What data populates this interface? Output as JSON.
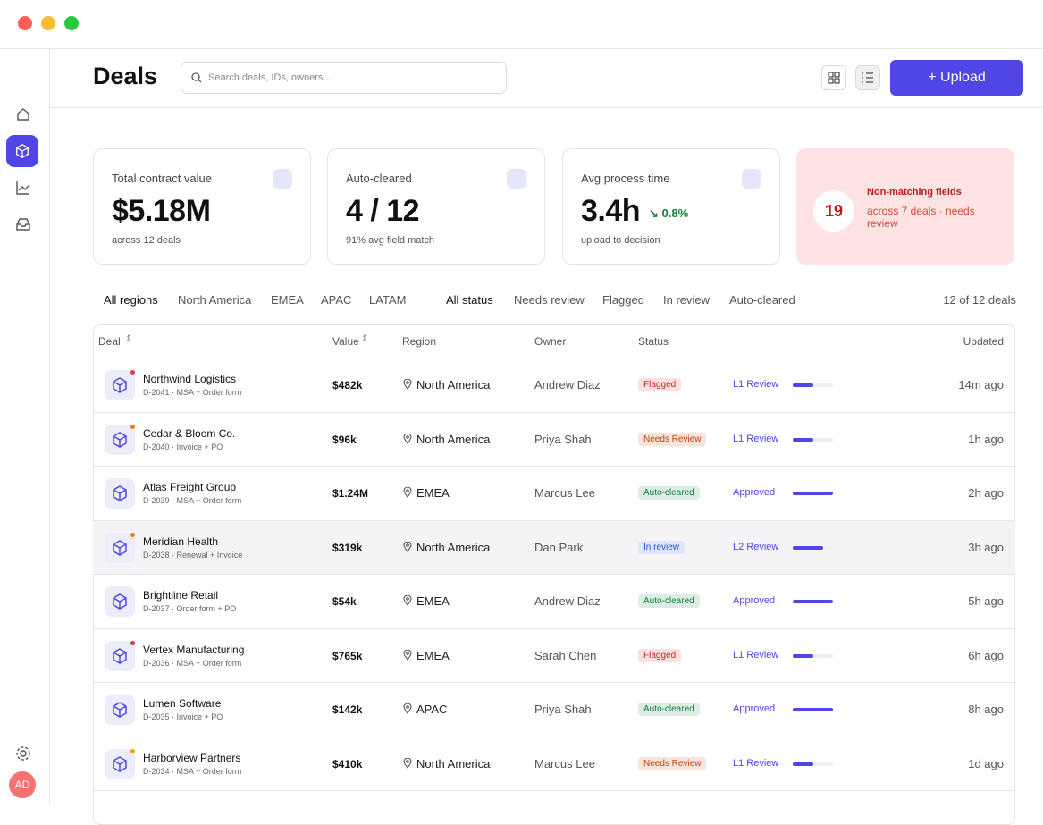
{
  "header": {
    "title": "Deals",
    "search_placeholder": "Search deals, IDs, owners...",
    "upload": "+ Upload"
  },
  "avatar": "AD",
  "stats": [
    {
      "label": "Total contract value",
      "value": "$5.18M",
      "sub": "across 12 deals"
    },
    {
      "label": "Auto-cleared",
      "value": "4 / 12",
      "sub": "91% avg field match"
    },
    {
      "label": "Avg process time",
      "value": "3.4h",
      "delta": "↘ 0.8%",
      "sub": "upload to decision"
    }
  ],
  "alert": {
    "count": "19",
    "title": "Non-matching fields",
    "text": "across 7 deals · needs review"
  },
  "filters": {
    "regions": [
      "All regions",
      "North America",
      "EMEA",
      "APAC",
      "LATAM"
    ],
    "statuses": [
      "All status",
      "Needs review",
      "Flagged",
      "In review",
      "Auto-cleared"
    ],
    "count": "12 of 12 deals"
  },
  "table": {
    "columns": [
      "Deal",
      "Value",
      "Region",
      "Owner",
      "Status",
      "Updated"
    ],
    "rows": [
      {
        "name": "Northwind Logistics",
        "id": "D-2041 · MSA + Order form",
        "value": "$482k",
        "region": "North America",
        "owner": "Andrew Diaz",
        "status": "Flagged",
        "status_color": "#c62828",
        "stage": "L1 Review",
        "progress": 50,
        "updated": "14m ago",
        "dot": "#e53935"
      },
      {
        "name": "Cedar & Bloom Co.",
        "id": "D-2040 · Invoice + PO",
        "value": "$96k",
        "region": "North America",
        "owner": "Priya Shah",
        "status": "Needs Review",
        "status_color": "#c2410c",
        "stage": "L1 Review",
        "progress": 50,
        "updated": "1h ago",
        "dot": "#f57c00"
      },
      {
        "name": "Atlas Freight Group",
        "id": "D-2039 · MSA + Order form",
        "value": "$1.24M",
        "region": "EMEA",
        "owner": "Marcus Lee",
        "status": "Auto-cleared",
        "status_color": "#15803d",
        "stage": "Approved",
        "progress": 100,
        "updated": "2h ago",
        "dot": null
      },
      {
        "name": "Meridian Health",
        "id": "D-2038 · Renewal + Invoice",
        "value": "$319k",
        "region": "North America",
        "owner": "Dan Park",
        "status": "In review",
        "status_color": "#1d4ed8",
        "stage": "L2 Review",
        "progress": 75,
        "updated": "3h ago",
        "dot": "#f57c00"
      },
      {
        "name": "Brightline Retail",
        "id": "D-2037 · Order form + PO",
        "value": "$54k",
        "region": "EMEA",
        "owner": "Andrew Diaz",
        "status": "Auto-cleared",
        "status_color": "#15803d",
        "stage": "Approved",
        "progress": 100,
        "updated": "5h ago",
        "dot": null
      },
      {
        "name": "Vertex Manufacturing",
        "id": "D-2036 · MSA + Order form",
        "value": "$765k",
        "region": "EMEA",
        "owner": "Sarah Chen",
        "status": "Flagged",
        "status_color": "#c62828",
        "stage": "L1 Review",
        "progress": 50,
        "updated": "6h ago",
        "dot": "#e53935"
      },
      {
        "name": "Lumen Software",
        "id": "D-2035 · Invoice + PO",
        "value": "$142k",
        "region": "APAC",
        "owner": "Priya Shah",
        "status": "Auto-cleared",
        "status_color": "#15803d",
        "stage": "Approved",
        "progress": 100,
        "updated": "8h ago",
        "dot": null
      },
      {
        "name": "Harborview Partners",
        "id": "D-2034 · MSA + Order form",
        "value": "$410k",
        "region": "North America",
        "owner": "Marcus Lee",
        "status": "Needs Review",
        "status_color": "#c2410c",
        "stage": "L1 Review",
        "progress": 50,
        "updated": "1d ago",
        "dot": "#f59e0b"
      }
    ]
  }
}
